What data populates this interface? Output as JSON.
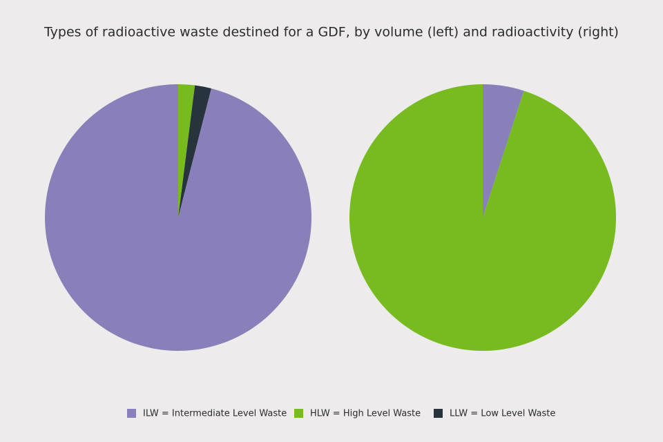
{
  "title": "Types of radioactive waste destined for a GDF, by volume (left) and radioactivity (right)",
  "legend": [
    {
      "label": "ILW = Intermediate Level Waste",
      "color": "#8a80b9"
    },
    {
      "label": "HLW = High Level Waste",
      "color": "#78bb21"
    },
    {
      "label": "LLW = Low Level Waste",
      "color": "#27333d"
    }
  ],
  "chart_data": [
    {
      "type": "pie",
      "values": [
        2,
        2,
        96
      ],
      "colors": [
        "#78bb21",
        "#27333d",
        "#8a80b9"
      ]
    },
    {
      "type": "pie",
      "values": [
        5,
        95
      ],
      "colors": [
        "#8a80b9",
        "#78bb21"
      ]
    }
  ]
}
